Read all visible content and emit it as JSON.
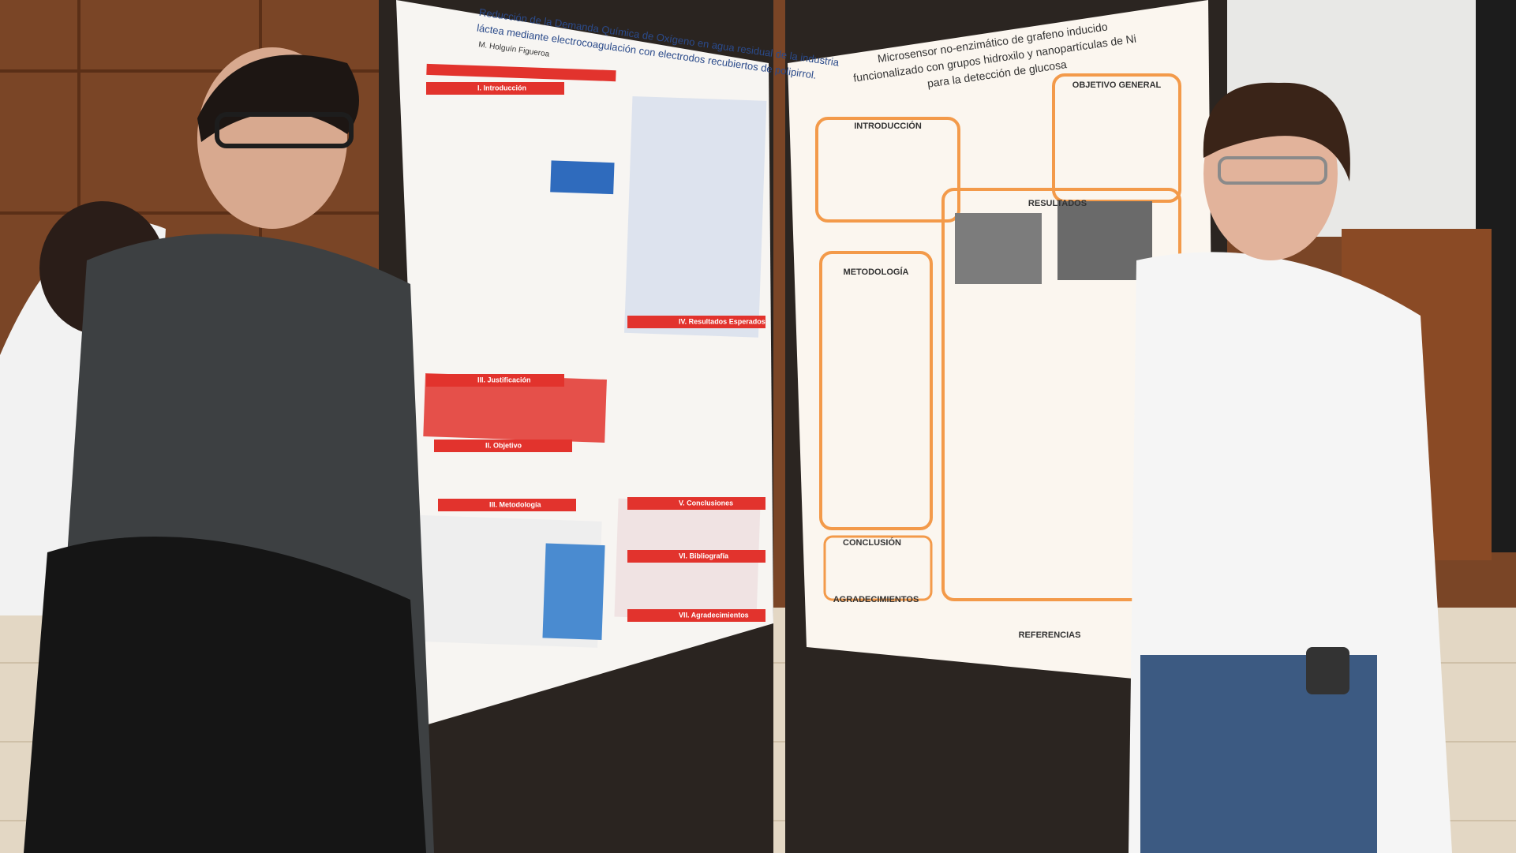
{
  "left_poster": {
    "title_lines": [
      "Reducción de la Demanda Química de Oxígeno en agua residual de la industria",
      "láctea mediante electrocoagulación con electrodos recubiertos de polipirrol."
    ],
    "author": "M. Holguín Figueroa",
    "sections": [
      "I. Introducción",
      "III. Justificación",
      "II. Objetivo",
      "III. Metodología",
      "IV. Resultados Esperados",
      "V. Conclusiones",
      "VI. Bibliografía",
      "VII. Agradecimientos"
    ]
  },
  "right_poster": {
    "title_lines": [
      "Microsensor no-enzimático de grafeno inducido",
      "funcionalizado con grupos hidroxilo y nanopartículas de Ni",
      "para la detección de glucosa"
    ],
    "sections": [
      "INTRODUCCIÓN",
      "OBJETIVO GENERAL",
      "RESULTADOS",
      "METODOLOGÍA",
      "CONCLUSIÓN",
      "AGRADECIMIENTOS",
      "REFERENCIAS"
    ]
  }
}
